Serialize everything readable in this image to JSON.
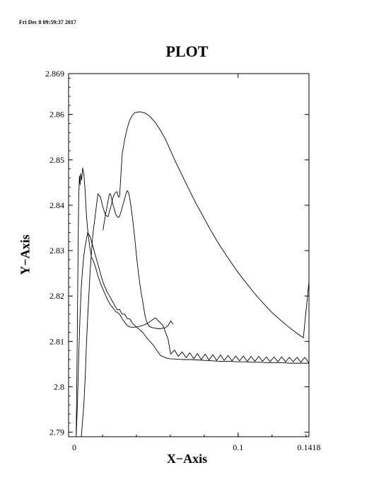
{
  "header": {
    "timestamp": "Fri Dec  8 09:59:37 2017"
  },
  "chart_data": {
    "type": "line",
    "title": "PLOT",
    "xlabel": "X−Axis",
    "ylabel": "Y−Axis",
    "xlim": [
      0,
      0.1418
    ],
    "ylim": [
      2.789,
      2.869
    ],
    "x_ticks": [
      {
        "value": 0,
        "label": "0"
      },
      {
        "value": 0.1,
        "label": "0.1"
      },
      {
        "value": 0.1418,
        "label": "0.1418"
      }
    ],
    "y_ticks": [
      {
        "value": 2.79,
        "label": "2.79"
      },
      {
        "value": 2.8,
        "label": "2.8"
      },
      {
        "value": 2.81,
        "label": "2.81"
      },
      {
        "value": 2.82,
        "label": "2.82"
      },
      {
        "value": 2.83,
        "label": "2.83"
      },
      {
        "value": 2.84,
        "label": "2.84"
      },
      {
        "value": 2.85,
        "label": "2.85"
      },
      {
        "value": 2.86,
        "label": "2.86"
      },
      {
        "value": 2.869,
        "label": "2.869"
      }
    ],
    "grid": false,
    "line_color": "#000000",
    "series": [
      {
        "x": [
          0.0045,
          0.0053,
          0.006,
          0.0068,
          0.0075,
          0.0083,
          0.009,
          0.0098,
          0.0113,
          0.0128,
          0.0143,
          0.0158,
          0.0173,
          0.0188,
          0.0203,
          0.0226,
          0.0241,
          0.0256,
          0.0271,
          0.0286,
          0.0301,
          0.0316,
          0.0331,
          0.0346,
          0.0361,
          0.0376,
          0.0406,
          0.0437,
          0.0467,
          0.0497,
          0.0542,
          0.0587,
          0.0632,
          0.0677,
          0.0723,
          0.0768,
          0.0813,
          0.0858,
          0.0903,
          0.0948,
          0.0993,
          0.1039,
          0.1084,
          0.1129,
          0.1174,
          0.1219,
          0.1264,
          0.1309,
          0.1355,
          0.14,
          0.1418
        ],
        "y": [
          2.789,
          2.797,
          2.807,
          2.816,
          2.822,
          2.826,
          2.829,
          2.831,
          2.834,
          2.833,
          2.831,
          2.829,
          2.827,
          2.825,
          2.823,
          2.821,
          2.82,
          2.819,
          2.818,
          2.817,
          2.817,
          2.816,
          2.816,
          2.815,
          2.815,
          2.814,
          2.813,
          2.812,
          2.8105,
          2.8093,
          2.8069,
          2.8062,
          2.8061,
          2.806,
          2.806,
          2.8059,
          2.8058,
          2.8057,
          2.8056,
          2.8056,
          2.8055,
          2.8055,
          2.8054,
          2.8054,
          2.8053,
          2.8053,
          2.8053,
          2.8052,
          2.8052,
          2.8052,
          2.8052
        ]
      },
      {
        "x": [
          0.0045,
          0.0051,
          0.0056,
          0.006,
          0.0064,
          0.0068,
          0.0072,
          0.0077,
          0.0083,
          0.009,
          0.0098,
          0.0105,
          0.0113,
          0.0124,
          0.0135,
          0.0143,
          0.0158,
          0.0173,
          0.0188,
          0.0203,
          0.0218,
          0.0233,
          0.0248,
          0.0263,
          0.0278,
          0.0301,
          0.0316,
          0.0331,
          0.0346,
          0.0361,
          0.0376,
          0.0406,
          0.0437,
          0.0467,
          0.0512,
          0.0557,
          0.0587,
          0.0602,
          0.0625,
          0.0647,
          0.067,
          0.0693,
          0.0715,
          0.0738,
          0.076,
          0.0783,
          0.0806,
          0.0828,
          0.0851,
          0.0873,
          0.0896,
          0.0918,
          0.0941,
          0.0964,
          0.0986,
          0.1009,
          0.1031,
          0.1054,
          0.1077,
          0.1099,
          0.1122,
          0.1144,
          0.1167,
          0.1189,
          0.1212,
          0.1235,
          0.1257,
          0.128,
          0.1302,
          0.1325,
          0.1348,
          0.137,
          0.1393,
          0.1415,
          0.1418
        ],
        "y": [
          2.7895,
          2.81,
          2.83,
          2.842,
          2.8465,
          2.8445,
          2.847,
          2.8455,
          2.8482,
          2.847,
          2.843,
          2.838,
          2.8345,
          2.831,
          2.8285,
          2.828,
          2.8265,
          2.8245,
          2.8228,
          2.8215,
          2.8202,
          2.819,
          2.818,
          2.8173,
          2.8166,
          2.816,
          2.815,
          2.8142,
          2.8135,
          2.8132,
          2.8131,
          2.8132,
          2.8135,
          2.814,
          2.8152,
          2.8135,
          2.8105,
          2.8072,
          2.8081,
          2.8067,
          2.8077,
          2.8064,
          2.8075,
          2.8062,
          2.8073,
          2.806,
          2.8072,
          2.8059,
          2.8071,
          2.8058,
          2.807,
          2.8058,
          2.8069,
          2.8057,
          2.8068,
          2.8057,
          2.8068,
          2.8056,
          2.8067,
          2.8056,
          2.8067,
          2.8056,
          2.8066,
          2.8055,
          2.8066,
          2.8055,
          2.8066,
          2.8055,
          2.8065,
          2.8055,
          2.8065,
          2.8054,
          2.8065,
          2.8054,
          2.8054
        ]
      },
      {
        "x": [
          0.0075,
          0.009,
          0.0098,
          0.0105,
          0.0113,
          0.0128,
          0.0143,
          0.0158,
          0.0173,
          0.0188,
          0.0203,
          0.0218,
          0.0233,
          0.0248,
          0.0263,
          0.0271,
          0.0278,
          0.0286,
          0.0294,
          0.0301,
          0.0316,
          0.0331,
          0.0346,
          0.0361,
          0.0376,
          0.0391,
          0.0421,
          0.0452,
          0.0482,
          0.0512,
          0.0542,
          0.0572,
          0.0602,
          0.0632,
          0.0662,
          0.0693,
          0.0723,
          0.0753,
          0.0783,
          0.0813,
          0.0843,
          0.0873,
          0.0903,
          0.0933,
          0.0964,
          0.0994,
          0.1024,
          0.1054,
          0.1084,
          0.1114,
          0.1144,
          0.1174,
          0.1204,
          0.1235,
          0.1265,
          0.1295,
          0.1325,
          0.1355,
          0.1385,
          0.1418
        ],
        "y": [
          2.789,
          2.796,
          2.802,
          2.809,
          2.8155,
          2.826,
          2.8335,
          2.838,
          2.8425,
          2.8418,
          2.8395,
          2.8378,
          2.8375,
          2.8395,
          2.8418,
          2.8425,
          2.8428,
          2.843,
          2.8418,
          2.842,
          2.8512,
          2.8545,
          2.857,
          2.8588,
          2.8598,
          2.8604,
          2.8606,
          2.8603,
          2.8595,
          2.8582,
          2.8565,
          2.8545,
          2.852,
          2.8495,
          2.8472,
          2.8448,
          2.8425,
          2.8403,
          2.8383,
          2.8362,
          2.8342,
          2.8323,
          2.8305,
          2.8288,
          2.8271,
          2.8255,
          2.824,
          2.8226,
          2.8212,
          2.8198,
          2.8186,
          2.8174,
          2.8162,
          2.8152,
          2.8142,
          2.8133,
          2.8124,
          2.8116,
          2.8108,
          2.8232
        ]
      },
      {
        "x": [
          0.0203,
          0.0218,
          0.0226,
          0.0233,
          0.0241,
          0.0248,
          0.0256,
          0.0263,
          0.0271,
          0.0278,
          0.0286,
          0.0294,
          0.0301,
          0.0309,
          0.0316,
          0.0324,
          0.0331,
          0.0339,
          0.0346,
          0.0354,
          0.0361,
          0.0369,
          0.0376,
          0.0384,
          0.0391,
          0.0399,
          0.0406,
          0.0414,
          0.0421,
          0.0429,
          0.0437,
          0.0444,
          0.0452,
          0.0459,
          0.0467,
          0.0474,
          0.0482,
          0.0497,
          0.0512,
          0.0527,
          0.0542,
          0.0557,
          0.0572,
          0.0587,
          0.0602,
          0.0617
        ],
        "y": [
          2.8345,
          2.838,
          2.8395,
          2.841,
          2.8425,
          2.8425,
          2.841,
          2.84,
          2.839,
          2.838,
          2.8375,
          2.8373,
          2.8376,
          2.8385,
          2.8395,
          2.8405,
          2.8415,
          2.8425,
          2.8432,
          2.8428,
          2.8415,
          2.8395,
          2.8375,
          2.835,
          2.8325,
          2.8295,
          2.827,
          2.8245,
          2.8225,
          2.8205,
          2.819,
          2.8172,
          2.8155,
          2.8145,
          2.8138,
          2.8134,
          2.8132,
          2.813,
          2.8129,
          2.8128,
          2.8128,
          2.8129,
          2.813,
          2.8135,
          2.8145,
          2.8138
        ]
      }
    ]
  }
}
